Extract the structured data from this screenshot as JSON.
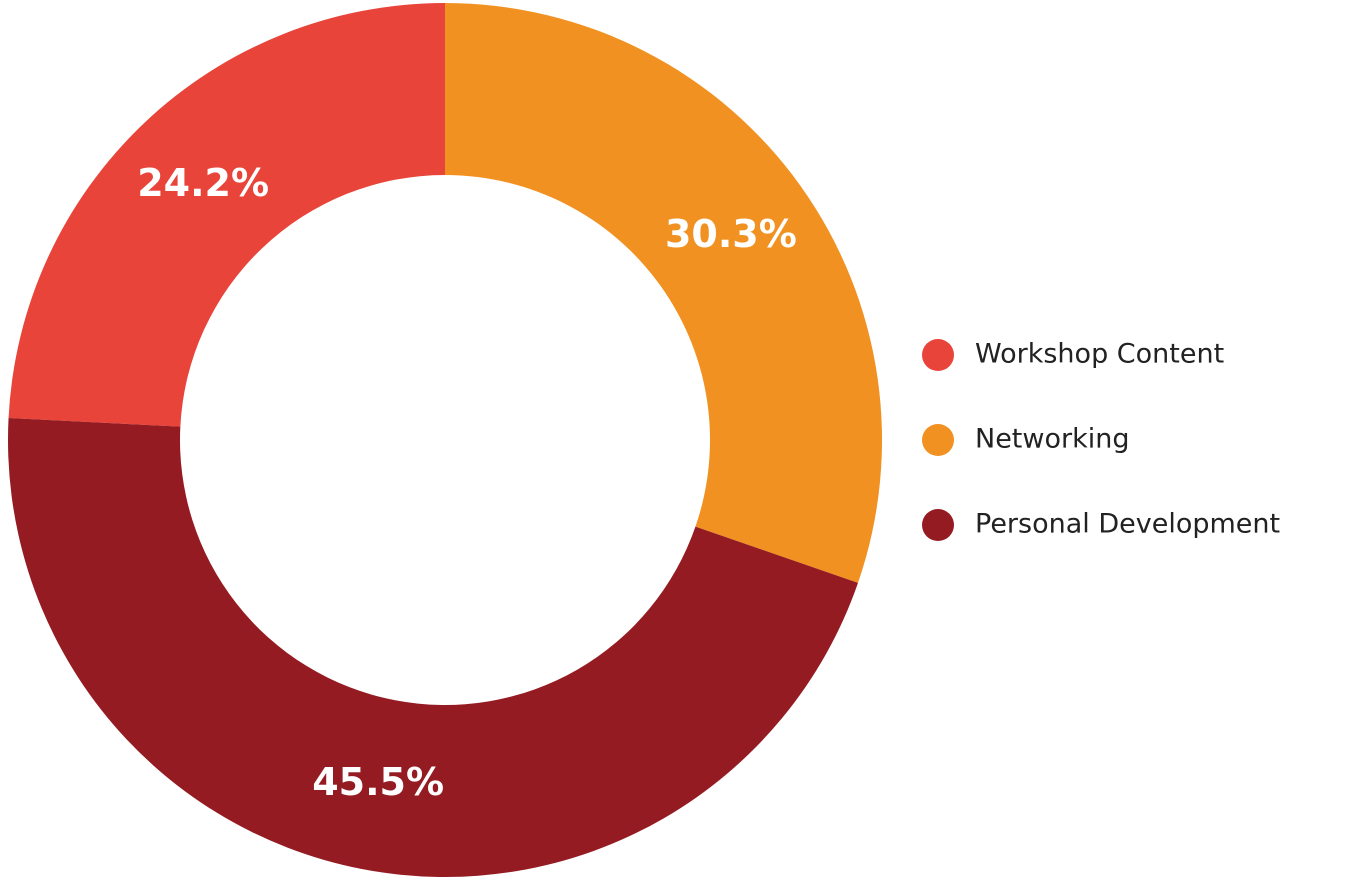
{
  "chart_data": {
    "type": "donut",
    "categories": [
      "Workshop Content",
      "Networking",
      "Personal Development"
    ],
    "values": [
      24.2,
      30.3,
      45.5
    ],
    "value_labels": [
      "24.2%",
      "30.3%",
      "45.5%"
    ],
    "colors": [
      "#e8443a",
      "#f19121",
      "#951b22"
    ],
    "legend": "right"
  }
}
